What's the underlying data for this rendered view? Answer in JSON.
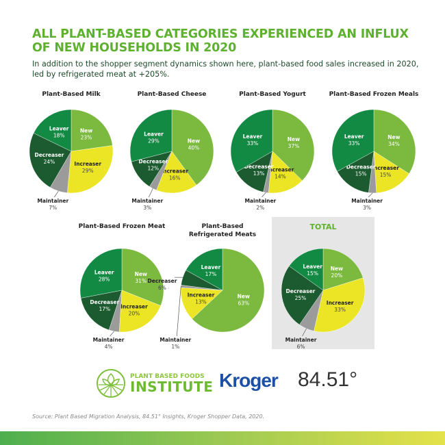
{
  "title": "ALL PLANT-BASED CATEGORIES EXPERIENCED AN INFLUX OF NEW HOUSEHOLDS IN 2020",
  "subtitle": "In addition to the shopper segment dynamics shown here, plant-based food sales increased in 2020, led by refrigerated meat at +205%.",
  "colors": {
    "New": "#7cb93f",
    "Increaser": "#ece526",
    "Maintainer": "#9b9b9b",
    "Decreaser": "#1b5b2f",
    "Leaver": "#138a44",
    "title": "#5db12f"
  },
  "chart_data": [
    {
      "type": "pie",
      "title": "Plant-Based Milk",
      "labels": [
        "New",
        "Increaser",
        "Maintainer",
        "Decreaser",
        "Leaver"
      ],
      "values": [
        23,
        29,
        7,
        24,
        18
      ]
    },
    {
      "type": "pie",
      "title": "Plant-Based Cheese",
      "labels": [
        "New",
        "Increaser",
        "Maintainer",
        "Decreaser",
        "Leaver"
      ],
      "values": [
        40,
        16,
        3,
        12,
        29
      ]
    },
    {
      "type": "pie",
      "title": "Plant-Based Yogurt",
      "labels": [
        "New",
        "Increaser",
        "Maintainer",
        "Decreaser",
        "Leaver"
      ],
      "values": [
        37,
        14,
        2,
        13,
        33
      ]
    },
    {
      "type": "pie",
      "title": "Plant-Based Frozen Meals",
      "labels": [
        "New",
        "Increaser",
        "Maintainer",
        "Decreaser",
        "Leaver"
      ],
      "values": [
        34,
        15,
        3,
        15,
        33
      ]
    },
    {
      "type": "pie",
      "title": "Plant-Based Frozen Meat",
      "labels": [
        "New",
        "Increaser",
        "Maintainer",
        "Decreaser",
        "Leaver"
      ],
      "values": [
        31,
        20,
        4,
        17,
        28
      ]
    },
    {
      "type": "pie",
      "title": "Plant-Based Refrigerated Meats",
      "title_lines": [
        "Plant-Based",
        "Refrigerated Meats"
      ],
      "labels": [
        "New",
        "Increaser",
        "Maintainer",
        "Decreaser",
        "Leaver"
      ],
      "values": [
        63,
        13,
        1,
        6,
        17
      ]
    },
    {
      "type": "pie",
      "title": "TOTAL",
      "labels": [
        "New",
        "Increaser",
        "Maintainer",
        "Decreaser",
        "Leaver"
      ],
      "values": [
        20,
        33,
        6,
        25,
        15
      ]
    }
  ],
  "logos": {
    "pbfi_line1": "PLANT BASED FOODS",
    "pbfi_line2": "INSTITUTE",
    "kroger": "Kroger",
    "k8451": "84.51°"
  },
  "source": "Source: Plant Based Migration Analysis, 84.51° Insights, Kroger Shopper Data, 2020."
}
